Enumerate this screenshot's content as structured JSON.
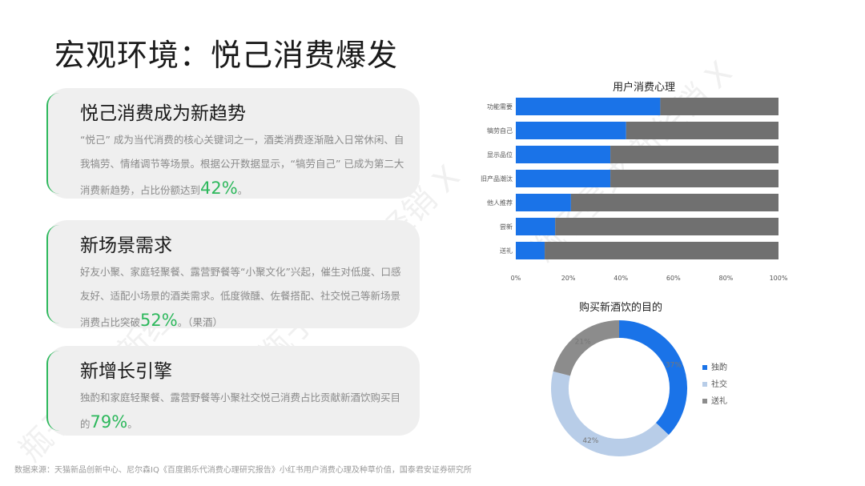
{
  "title": "宏观环境：悦己消费爆发",
  "cards": [
    {
      "title": "悦己消费成为新趋势",
      "body": "“悦己” 成为当代消费的核心关键词之一，酒类消费逐渐融入日常休闲、自我犒劳、情绪调节等场景。根据公开数据显示，“犒劳自己” 已成为第二大消费新趋势，占比份额达到",
      "highlight": "42%",
      "suffix": "。"
    },
    {
      "title": "新场景需求",
      "body": "好友小聚、家庭轻聚餐、露营野餐等“小聚文化”兴起，催生对低度、口感友好、适配小场景的酒类需求。低度微醺、佐餐搭配、社交悦己等新场景消费占比突破",
      "highlight": "52%",
      "suffix": "。（果酒）"
    },
    {
      "title": "新增长引擎",
      "body": "独酌和家庭轻聚餐、露营野餐等小聚社交悦己消费占比贡献新酒饮购买目的",
      "highlight": "79%",
      "suffix": "。"
    }
  ],
  "source": "数据来源：天猫新品创新中心、尼尔森IQ《百度鹅乐代消费心理研究报告》小红书用户消费心理及种草价值，国泰君安证券研究所",
  "watermark": "瓶子星球  新经销  X",
  "colors": {
    "blue": "#1a73e8",
    "gray": "#707070",
    "light_blue": "#b8cde8",
    "green": "#2db85c"
  },
  "chart_data": [
    {
      "type": "bar",
      "orientation": "horizontal",
      "stacked": true,
      "percent": true,
      "title": "用户消费心理",
      "categories": [
        "功能需要",
        "犒劳自己",
        "显示品位",
        "旧产品潮汰",
        "他人推荐",
        "尝新",
        "送礼"
      ],
      "series": [
        {
          "color": "#1a73e8",
          "values": [
            55,
            42,
            36,
            36,
            21,
            15,
            11
          ]
        },
        {
          "color": "#707070",
          "values": [
            45,
            58,
            64,
            64,
            79,
            85,
            89
          ]
        }
      ],
      "xlim": [
        0,
        100
      ],
      "xticks": [
        "0%",
        "20%",
        "40%",
        "60%",
        "80%",
        "100%"
      ],
      "grid": false
    },
    {
      "type": "pie",
      "donut": true,
      "title": "购买新酒饮的目的",
      "labels": [
        "独酌",
        "社交",
        "送礼"
      ],
      "values": [
        37,
        42,
        21
      ],
      "data_labels": [
        "37%",
        "42%",
        "21%"
      ],
      "colors": [
        "#1a73e8",
        "#b8cde8",
        "#8c8c8c"
      ],
      "legend": "right"
    }
  ]
}
